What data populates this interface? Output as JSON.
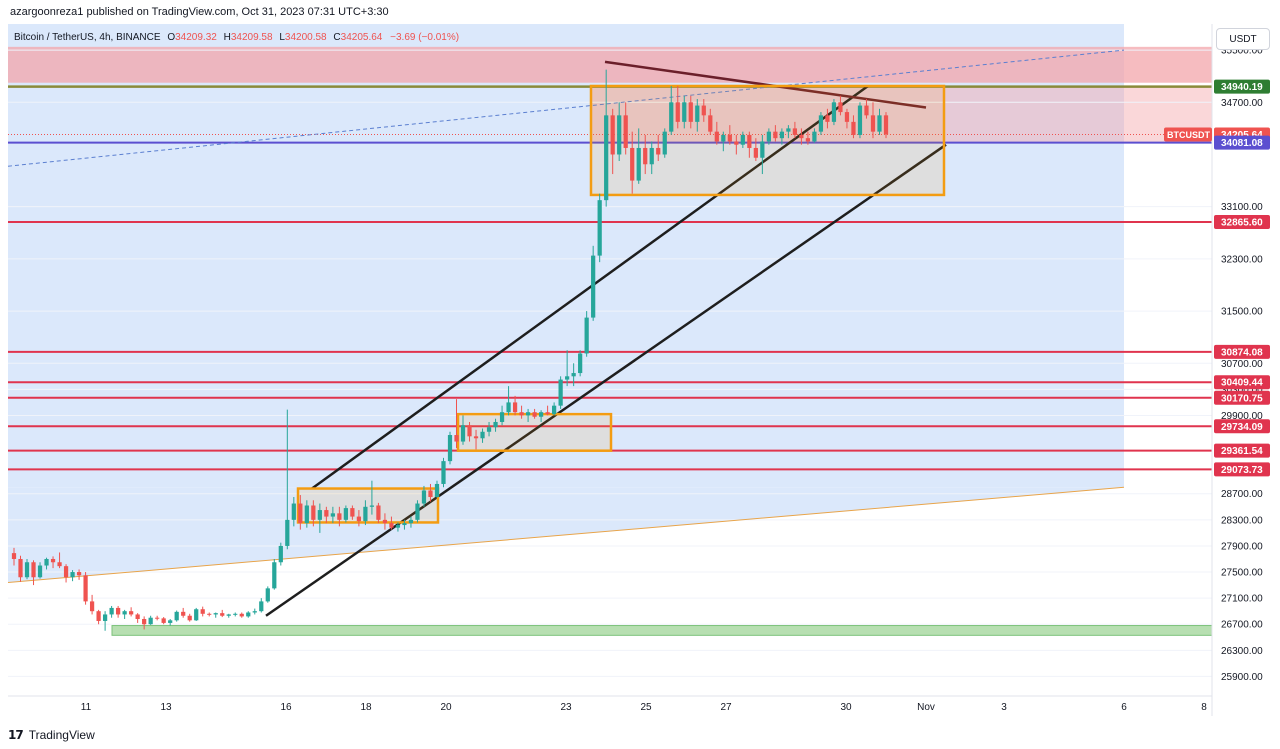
{
  "header": {
    "publish_line": "azargoonreza1 published on TradingView.com, Oct 31, 2023 07:31 UTC+3:30"
  },
  "legend": {
    "symbol": "Bitcoin / TetherUS, 4h, BINANCE",
    "o_label": "O",
    "o_value": "34209.32",
    "h_label": "H",
    "h_value": "34209.58",
    "l_label": "L",
    "l_value": "34200.58",
    "c_label": "C",
    "c_value": "34205.64",
    "change": "−3.69 (−0.01%)"
  },
  "currency_button": "USDT",
  "footer": {
    "logo_mark": "17",
    "logo_text": "TradingView"
  },
  "colors": {
    "up": "#26a69a",
    "down": "#ef5350",
    "hline": "#e0344e",
    "hline_label_bg": "#e0344e",
    "blue_line": "#5b4fd0",
    "orange_box": "#f39c12",
    "channel": "#1e1e1e",
    "resist_line": "#6b1f2a",
    "blue_bg": "#dbe8fb",
    "red_zone": "#f3a6ab",
    "green_zone": "#b7dfb1",
    "trend_orange": "#e8a44a"
  },
  "chart_data": {
    "type": "candlestick",
    "symbol": "BTCUSDT",
    "timeframe": "4h",
    "ylim": [
      25600,
      35900
    ],
    "x_ticks": [
      "11",
      "13",
      "16",
      "18",
      "20",
      "23",
      "25",
      "27",
      "30",
      "Nov",
      "3",
      "6",
      "8"
    ],
    "y_ticks": [
      35500,
      34700,
      33100,
      32300,
      31500,
      30700,
      30300,
      29900,
      28700,
      28300,
      27900,
      27500,
      27100,
      26700,
      26300,
      25900
    ],
    "price_labels": [
      {
        "value": 34940.19,
        "text": "34940.19",
        "style": "green"
      },
      {
        "value": 34205.64,
        "text": "34205.64",
        "style": "last",
        "tag": "BTCUSDT"
      },
      {
        "value": 34081.08,
        "text": "34081.08",
        "style": "blue"
      },
      {
        "value": 32865.6,
        "text": "32865.60",
        "style": "red"
      },
      {
        "value": 30874.08,
        "text": "30874.08",
        "style": "red"
      },
      {
        "value": 30409.44,
        "text": "30409.44",
        "style": "red"
      },
      {
        "value": 30170.75,
        "text": "30170.75",
        "style": "red"
      },
      {
        "value": 29734.09,
        "text": "29734.09",
        "style": "red"
      },
      {
        "value": 29361.54,
        "text": "29361.54",
        "style": "red"
      },
      {
        "value": 29073.73,
        "text": "29073.73",
        "style": "red"
      }
    ],
    "horizontal_lines": [
      34940.19,
      34081.08,
      32865.6,
      30874.08,
      30409.44,
      30170.75,
      29734.09,
      29361.54,
      29073.73
    ],
    "zones": {
      "red_resistance": [
        35000,
        35550
      ],
      "green_support": [
        26530,
        26680
      ]
    },
    "candles": [
      [
        27790,
        27870,
        27600,
        27700
      ],
      [
        27700,
        27750,
        27350,
        27420
      ],
      [
        27420,
        27700,
        27390,
        27650
      ],
      [
        27650,
        27680,
        27300,
        27420
      ],
      [
        27420,
        27650,
        27400,
        27600
      ],
      [
        27600,
        27720,
        27540,
        27700
      ],
      [
        27700,
        27740,
        27560,
        27650
      ],
      [
        27650,
        27800,
        27560,
        27590
      ],
      [
        27590,
        27620,
        27340,
        27420
      ],
      [
        27420,
        27530,
        27360,
        27500
      ],
      [
        27500,
        27540,
        27380,
        27450
      ],
      [
        27450,
        27500,
        27000,
        27050
      ],
      [
        27050,
        27150,
        26850,
        26900
      ],
      [
        26900,
        26920,
        26700,
        26750
      ],
      [
        26750,
        26900,
        26600,
        26850
      ],
      [
        26850,
        26980,
        26800,
        26950
      ],
      [
        26950,
        26980,
        26800,
        26850
      ],
      [
        26850,
        26920,
        26780,
        26900
      ],
      [
        26900,
        26960,
        26820,
        26850
      ],
      [
        26850,
        26870,
        26720,
        26780
      ],
      [
        26780,
        26820,
        26620,
        26700
      ],
      [
        26700,
        26830,
        26690,
        26800
      ],
      [
        26800,
        26830,
        26760,
        26790
      ],
      [
        26790,
        26810,
        26700,
        26720
      ],
      [
        26720,
        26780,
        26680,
        26760
      ],
      [
        26760,
        26910,
        26740,
        26890
      ],
      [
        26890,
        26950,
        26800,
        26830
      ],
      [
        26830,
        26860,
        26740,
        26760
      ],
      [
        26760,
        26950,
        26750,
        26930
      ],
      [
        26930,
        26970,
        26820,
        26860
      ],
      [
        26860,
        26880,
        26820,
        26850
      ],
      [
        26850,
        26880,
        26800,
        26870
      ],
      [
        26870,
        26920,
        26810,
        26830
      ],
      [
        26830,
        26860,
        26800,
        26850
      ],
      [
        26850,
        26880,
        26820,
        26860
      ],
      [
        26860,
        26880,
        26800,
        26820
      ],
      [
        26820,
        26900,
        26800,
        26880
      ],
      [
        26880,
        26940,
        26850,
        26900
      ],
      [
        26900,
        27100,
        26880,
        27050
      ],
      [
        27050,
        27280,
        27030,
        27250
      ],
      [
        27250,
        27700,
        27230,
        27650
      ],
      [
        27650,
        27950,
        27600,
        27900
      ],
      [
        27900,
        29990,
        27850,
        28300
      ],
      [
        28300,
        28650,
        28200,
        28550
      ],
      [
        28550,
        28680,
        28150,
        28250
      ],
      [
        28250,
        28600,
        28180,
        28520
      ],
      [
        28520,
        28600,
        28200,
        28300
      ],
      [
        28300,
        28550,
        28100,
        28450
      ],
      [
        28450,
        28500,
        28250,
        28350
      ],
      [
        28350,
        28500,
        28250,
        28400
      ],
      [
        28400,
        28500,
        28200,
        28300
      ],
      [
        28300,
        28520,
        28260,
        28480
      ],
      [
        28480,
        28520,
        28300,
        28350
      ],
      [
        28350,
        28450,
        28200,
        28280
      ],
      [
        28280,
        28600,
        28220,
        28500
      ],
      [
        28500,
        28900,
        28380,
        28520
      ],
      [
        28520,
        28560,
        28250,
        28300
      ],
      [
        28300,
        28400,
        28150,
        28250
      ],
      [
        28250,
        28350,
        28150,
        28180
      ],
      [
        28180,
        28260,
        28120,
        28220
      ],
      [
        28220,
        28300,
        28150,
        28250
      ],
      [
        28250,
        28350,
        28180,
        28300
      ],
      [
        28300,
        28600,
        28260,
        28550
      ],
      [
        28550,
        28820,
        28500,
        28750
      ],
      [
        28750,
        28850,
        28580,
        28650
      ],
      [
        28650,
        28900,
        28640,
        28850
      ],
      [
        28850,
        29250,
        28800,
        29200
      ],
      [
        29200,
        29650,
        29150,
        29600
      ],
      [
        29600,
        30150,
        29400,
        29500
      ],
      [
        29500,
        29900,
        29450,
        29750
      ],
      [
        29750,
        29800,
        29500,
        29580
      ],
      [
        29580,
        29680,
        29380,
        29550
      ],
      [
        29550,
        29700,
        29480,
        29650
      ],
      [
        29650,
        29800,
        29580,
        29720
      ],
      [
        29720,
        29850,
        29650,
        29800
      ],
      [
        29800,
        30050,
        29750,
        29950
      ],
      [
        29950,
        30350,
        29900,
        30100
      ],
      [
        30100,
        30200,
        29900,
        29950
      ],
      [
        29950,
        30050,
        29850,
        29900
      ],
      [
        29900,
        30000,
        29800,
        29950
      ],
      [
        29950,
        30000,
        29850,
        29880
      ],
      [
        29880,
        29980,
        29800,
        29950
      ],
      [
        29950,
        30050,
        29900,
        29920
      ],
      [
        29920,
        30100,
        29900,
        30050
      ],
      [
        30050,
        30500,
        30000,
        30450
      ],
      [
        30450,
        30900,
        30350,
        30500
      ],
      [
        30500,
        30700,
        30350,
        30550
      ],
      [
        30550,
        30900,
        30500,
        30850
      ],
      [
        30850,
        31500,
        30800,
        31400
      ],
      [
        31400,
        32500,
        31350,
        32350
      ],
      [
        32350,
        33300,
        32250,
        33200
      ],
      [
        33200,
        35200,
        33100,
        34500
      ],
      [
        34500,
        34600,
        33600,
        33900
      ],
      [
        33900,
        34700,
        33800,
        34500
      ],
      [
        34500,
        34700,
        33900,
        34000
      ],
      [
        34000,
        34250,
        33300,
        33500
      ],
      [
        33500,
        34300,
        33450,
        34000
      ],
      [
        34000,
        34200,
        33600,
        33750
      ],
      [
        33750,
        34100,
        33600,
        34000
      ],
      [
        34000,
        34200,
        33800,
        33900
      ],
      [
        33900,
        34300,
        33850,
        34250
      ],
      [
        34250,
        34950,
        34200,
        34700
      ],
      [
        34700,
        34950,
        34300,
        34400
      ],
      [
        34400,
        34800,
        34300,
        34700
      ],
      [
        34700,
        34800,
        34300,
        34400
      ],
      [
        34400,
        34750,
        34250,
        34650
      ],
      [
        34650,
        34750,
        34400,
        34500
      ],
      [
        34500,
        34600,
        34200,
        34250
      ],
      [
        34250,
        34400,
        34050,
        34100
      ],
      [
        34100,
        34250,
        33950,
        34200
      ],
      [
        34200,
        34350,
        34050,
        34100
      ],
      [
        34100,
        34200,
        33900,
        34050
      ],
      [
        34050,
        34250,
        34000,
        34200
      ],
      [
        34200,
        34250,
        33850,
        34000
      ],
      [
        34000,
        34150,
        33800,
        33850
      ],
      [
        33850,
        34200,
        33600,
        34100
      ],
      [
        34100,
        34300,
        34050,
        34250
      ],
      [
        34250,
        34350,
        34100,
        34150
      ],
      [
        34150,
        34300,
        34050,
        34250
      ],
      [
        34250,
        34350,
        34150,
        34300
      ],
      [
        34300,
        34400,
        34150,
        34200
      ],
      [
        34200,
        34300,
        34050,
        34150
      ],
      [
        34150,
        34250,
        34050,
        34100
      ],
      [
        34100,
        34300,
        34080,
        34250
      ],
      [
        34250,
        34550,
        34200,
        34500
      ],
      [
        34500,
        34600,
        34300,
        34400
      ],
      [
        34400,
        34750,
        34350,
        34700
      ],
      [
        34700,
        34800,
        34500,
        34550
      ],
      [
        34550,
        34600,
        34300,
        34400
      ],
      [
        34400,
        34500,
        34150,
        34200
      ],
      [
        34200,
        34700,
        34150,
        34650
      ],
      [
        34650,
        34750,
        34450,
        34500
      ],
      [
        34500,
        34700,
        34150,
        34250
      ],
      [
        34250,
        34600,
        34200,
        34500
      ],
      [
        34500,
        34550,
        34150,
        34209
      ]
    ]
  }
}
